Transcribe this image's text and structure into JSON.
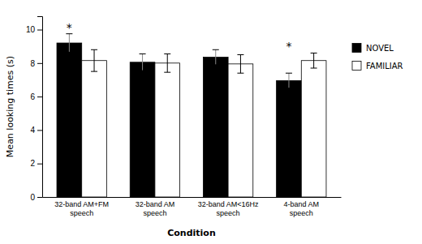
{
  "chart_data": {
    "type": "bar",
    "xlabel": "Condition",
    "ylabel": "Mean looking times (s)",
    "categories": [
      "32-band AM+FM\nspeech",
      "32-band AM\nspeech",
      "32-band AM<16Hz\nspeech",
      "4-band AM\nspeech"
    ],
    "series": [
      {
        "name": "NOVEL",
        "color": "#000000",
        "values": [
          9.2,
          8.05,
          8.35,
          6.95
        ],
        "errors": [
          0.55,
          0.5,
          0.45,
          0.45
        ]
      },
      {
        "name": "FAMILIAR",
        "color": "#ffffff",
        "values": [
          8.15,
          8.0,
          7.95,
          8.15
        ],
        "errors": [
          0.65,
          0.55,
          0.55,
          0.45
        ]
      }
    ],
    "annotations": [
      {
        "text": "*",
        "category": 0,
        "series": 0
      },
      {
        "text": "*",
        "category": 3,
        "series": 0
      }
    ],
    "ylim": [
      0,
      10.8
    ],
    "yticks": [
      0,
      2,
      4,
      6,
      8,
      10
    ],
    "grid": false,
    "legend": "right"
  }
}
